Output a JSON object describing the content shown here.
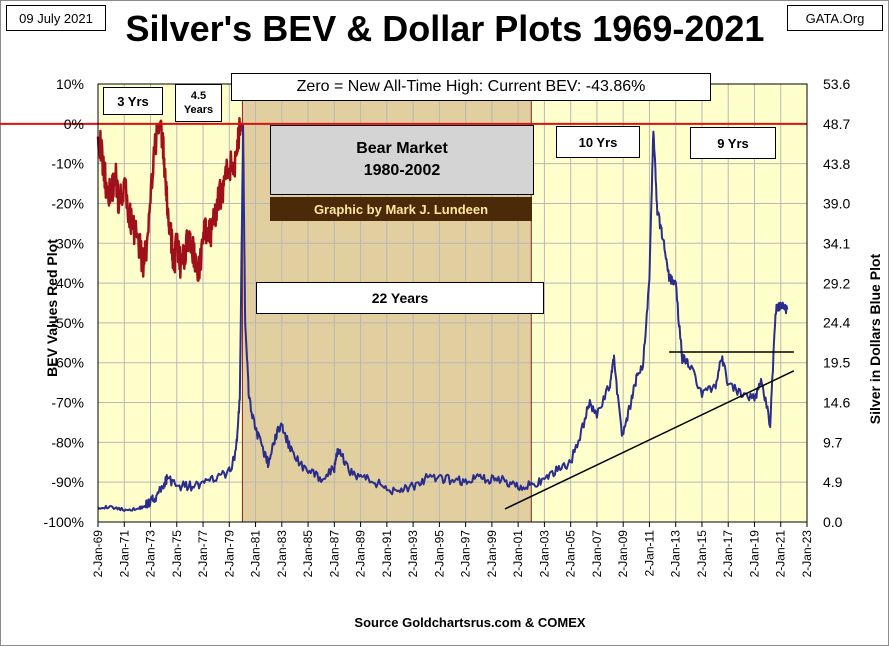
{
  "header": {
    "date": "09 July 2021",
    "source": "GATA.Org",
    "title": "Silver's BEV & Dollar Plots 1969-2021"
  },
  "annotations": {
    "subtitle": "Zero = New All-Time High: Current BEV: -43.86%",
    "bear_line1": "Bear Market",
    "bear_line2": "1980-2002",
    "credit": "Graphic by Mark J. Lundeen",
    "bear_years": "22 Years",
    "label_3yrs": "3 Yrs",
    "label_45_line1": "4.5",
    "label_45_line2": "Years",
    "label_10yrs": "10 Yrs",
    "label_9yrs": "9 Yrs"
  },
  "footer": "Source Goldchartsrus.com  & COMEX",
  "colors": {
    "plot_background": "#ffffcc",
    "bear_shading": "#e2cfa0",
    "bev_line": "#a0101a",
    "price_line": "#2b2d8c",
    "zero_line": "#e01010",
    "grid": "#b8b8b8"
  },
  "chart_data": {
    "type": "line",
    "xlabel": "",
    "ylabel_left": "BEV Values    Red Plot",
    "ylabel_right": "Silver in Dollars    Blue Plot",
    "x_ticks": [
      "2-Jan-69",
      "2-Jan-71",
      "2-Jan-73",
      "2-Jan-75",
      "2-Jan-77",
      "2-Jan-79",
      "2-Jan-81",
      "2-Jan-83",
      "2-Jan-85",
      "2-Jan-87",
      "2-Jan-89",
      "2-Jan-91",
      "2-Jan-93",
      "2-Jan-95",
      "2-Jan-97",
      "2-Jan-99",
      "2-Jan-01",
      "2-Jan-03",
      "2-Jan-05",
      "2-Jan-07",
      "2-Jan-09",
      "2-Jan-11",
      "2-Jan-13",
      "2-Jan-15",
      "2-Jan-17",
      "2-Jan-19",
      "2-Jan-21",
      "2-Jan-23"
    ],
    "y_left_ticks": [
      "10%",
      "0%",
      "-10%",
      "-20%",
      "-30%",
      "-40%",
      "-50%",
      "-60%",
      "-70%",
      "-80%",
      "-90%",
      "-100%"
    ],
    "y_right_ticks": [
      "53.6",
      "48.7",
      "43.8",
      "39.0",
      "34.1",
      "29.2",
      "24.4",
      "19.5",
      "14.6",
      "9.7",
      "4.9",
      "0.0"
    ],
    "xlim": [
      1969,
      2023
    ],
    "ylim_left": [
      -100,
      10
    ],
    "ylim_right": [
      0,
      53.6
    ],
    "bear_market": [
      1980,
      2002
    ],
    "series": [
      {
        "name": "BEV Values",
        "x": [
          1969.0,
          1969.3,
          1969.6,
          1970.0,
          1970.3,
          1970.6,
          1971.0,
          1971.3,
          1971.6,
          1972.0,
          1972.4,
          1972.8,
          1973.2,
          1973.5,
          1973.8,
          1974.0,
          1974.2,
          1974.4,
          1974.6,
          1974.8,
          1975.0,
          1975.3,
          1975.6,
          1976.0,
          1976.3,
          1976.6,
          1977.0,
          1977.3,
          1977.6,
          1978.0,
          1978.3,
          1978.6,
          1979.0,
          1979.3,
          1979.6,
          1979.8,
          1980.0
        ],
        "y": [
          -2,
          -8,
          -15,
          -18,
          -12,
          -20,
          -15,
          -22,
          -25,
          -28,
          -35,
          -30,
          -10,
          -2,
          0,
          -8,
          -18,
          -25,
          -30,
          -35,
          -30,
          -36,
          -32,
          -28,
          -33,
          -38,
          -30,
          -25,
          -28,
          -22,
          -18,
          -15,
          -10,
          -12,
          -5,
          -2,
          0
        ]
      },
      {
        "name": "Silver in Dollars",
        "x": [
          1969.0,
          1970.0,
          1971.0,
          1972.0,
          1972.6,
          1973.0,
          1973.5,
          1974.0,
          1974.3,
          1975.0,
          1976.0,
          1977.0,
          1978.0,
          1979.0,
          1979.5,
          1979.8,
          1980.05,
          1980.2,
          1980.5,
          1981.0,
          1981.5,
          1982.0,
          1982.5,
          1983.0,
          1983.5,
          1984.0,
          1985.0,
          1986.0,
          1987.0,
          1987.3,
          1988.0,
          1989.0,
          1990.0,
          1991.0,
          1992.0,
          1993.0,
          1994.0,
          1995.0,
          1996.0,
          1997.0,
          1998.0,
          1999.0,
          2000.0,
          2001.0,
          2002.0,
          2003.0,
          2004.0,
          2005.0,
          2006.0,
          2006.4,
          2007.0,
          2008.0,
          2008.3,
          2008.9,
          2009.5,
          2010.0,
          2010.5,
          2011.0,
          2011.3,
          2011.6,
          2012.0,
          2012.5,
          2013.0,
          2013.5,
          2014.0,
          2015.0,
          2016.0,
          2016.5,
          2017.0,
          2018.0,
          2019.0,
          2019.5,
          2020.2,
          2020.6,
          2021.0,
          2021.5
        ],
        "y": [
          1.8,
          1.8,
          1.5,
          1.6,
          2.0,
          2.6,
          3.2,
          4.5,
          5.5,
          4.4,
          4.4,
          4.6,
          5.4,
          6.1,
          8.5,
          15.0,
          48.0,
          25.0,
          15.0,
          11.5,
          9.0,
          7.0,
          10.5,
          12.0,
          9.5,
          8.0,
          6.0,
          5.5,
          6.5,
          9.0,
          6.5,
          5.5,
          5.0,
          4.0,
          4.0,
          4.3,
          5.3,
          5.2,
          5.2,
          4.9,
          5.5,
          5.2,
          5.0,
          4.4,
          4.6,
          4.9,
          6.5,
          7.3,
          12.0,
          14.5,
          13.0,
          17.0,
          20.0,
          10.5,
          14.0,
          17.5,
          19.0,
          30.0,
          48.0,
          38.0,
          35.0,
          30.0,
          29.0,
          20.0,
          19.5,
          15.8,
          16.5,
          20.0,
          17.0,
          15.5,
          15.0,
          17.5,
          12.0,
          26.0,
          26.5,
          26.0
        ]
      }
    ],
    "trendlines": [
      {
        "from": [
          2000.0,
          1.6
        ],
        "to": [
          2022.0,
          18.5
        ]
      },
      {
        "from": [
          2012.5,
          20.8
        ],
        "to": [
          2022.0,
          20.8
        ]
      }
    ]
  }
}
